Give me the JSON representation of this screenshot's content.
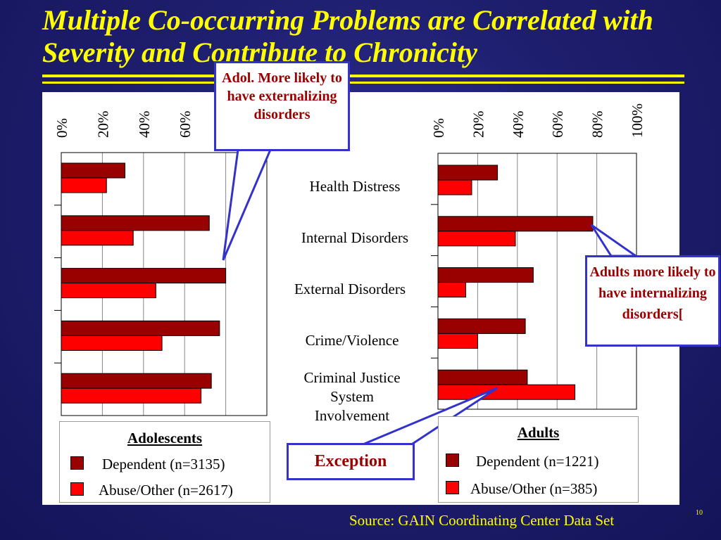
{
  "slide": {
    "title": "Multiple Co-occurring Problems are Correlated with Severity and Contribute to Chronicity",
    "source": "Source: GAIN Coordinating Center Data Set",
    "page_number": "10",
    "colors": {
      "background": "#1e1e6e",
      "title": "#ffff00",
      "dependent": "#990000",
      "abuse_other": "#ff0000",
      "callout_border": "#3333cc",
      "callout_text": "#990000"
    }
  },
  "categories": [
    "Health Distress",
    "Internal Disorders",
    "External Disorders",
    "Crime/Violence",
    "Criminal Justice System Involvement"
  ],
  "callouts": {
    "adolescent": "Adol. More likely to have externalizing disorders",
    "adult": "Adults more likely to have internalizing disorders[",
    "exception": "Exception"
  },
  "chart_data": [
    {
      "type": "bar",
      "orientation": "horizontal",
      "panel": "Adolescents",
      "categories": [
        "Health Distress",
        "Internal Disorders",
        "External Disorders",
        "Crime/Violence",
        "Criminal Justice System Involvement"
      ],
      "series": [
        {
          "name": "Dependent (n=3135)",
          "color": "#990000",
          "values": [
            31,
            72,
            80,
            77,
            73
          ]
        },
        {
          "name": "Abuse/Other (n=2617)",
          "color": "#ff0000",
          "values": [
            22,
            35,
            46,
            49,
            68
          ]
        }
      ],
      "xlim": [
        0,
        100
      ],
      "tick_labels": [
        "0%",
        "20%",
        "40%",
        "60%"
      ],
      "legend": {
        "title": "Adolescents",
        "placement": "bottom"
      }
    },
    {
      "type": "bar",
      "orientation": "horizontal",
      "panel": "Adults",
      "categories": [
        "Health Distress",
        "Internal Disorders",
        "External Disorders",
        "Crime/Violence",
        "Criminal Justice System Involvement"
      ],
      "series": [
        {
          "name": "Dependent (n=1221)",
          "color": "#990000",
          "values": [
            30,
            78,
            48,
            44,
            45
          ]
        },
        {
          "name": "Abuse/Other (n=385)",
          "color": "#ff0000",
          "values": [
            17,
            39,
            14,
            20,
            69
          ]
        }
      ],
      "xlim": [
        0,
        100
      ],
      "tick_labels": [
        "0%",
        "20%",
        "40%",
        "60%",
        "80%",
        "100%"
      ],
      "legend": {
        "title": "Adults",
        "placement": "bottom"
      }
    }
  ]
}
